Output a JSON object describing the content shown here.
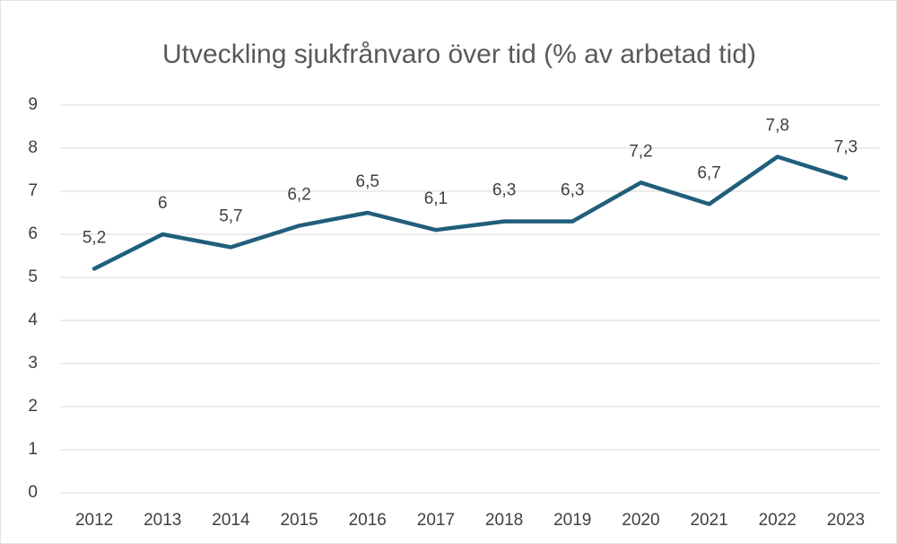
{
  "chart_data": {
    "type": "line",
    "title": "Utveckling sjukfrånvaro över tid (% av arbetad tid)",
    "categories": [
      "2012",
      "2013",
      "2014",
      "2015",
      "2016",
      "2017",
      "2018",
      "2019",
      "2020",
      "2021",
      "2022",
      "2023"
    ],
    "values": [
      5.2,
      6,
      5.7,
      6.2,
      6.5,
      6.1,
      6.3,
      6.3,
      7.2,
      6.7,
      7.8,
      7.3
    ],
    "value_labels": [
      "5,2",
      "6",
      "5,7",
      "6,2",
      "6,5",
      "6,1",
      "6,3",
      "6,3",
      "7,2",
      "6,7",
      "7,8",
      "7,3"
    ],
    "color": "#205e7b",
    "ylim": [
      0,
      9
    ],
    "yticks": [
      0,
      1,
      2,
      3,
      4,
      5,
      6,
      7,
      8,
      9
    ],
    "grid": true
  }
}
